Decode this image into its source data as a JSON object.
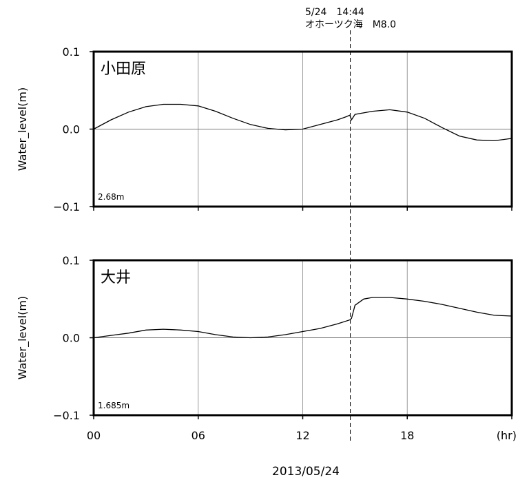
{
  "event": {
    "time_label": "5/24　14:44",
    "description": "オホーツク海　M8.0",
    "hour": 14.73
  },
  "x_unit": "(hr)",
  "date_label": "2013/05/24",
  "chart_data": [
    {
      "type": "line",
      "station": "小田原",
      "base_level": "2.68m",
      "ylabel": "Water_level(m)",
      "xlim": [
        0,
        24
      ],
      "ylim": [
        -0.1,
        0.1
      ],
      "grid": true,
      "x_ticks": [
        "00",
        "06",
        "12",
        "18"
      ],
      "y_ticks": [
        "0.1",
        "0.0",
        "−0.1"
      ],
      "x": [
        0,
        1,
        2,
        3,
        4,
        5,
        6,
        7,
        8,
        9,
        10,
        11,
        12,
        13,
        14,
        14.5,
        14.7,
        14.8,
        15,
        16,
        17,
        18,
        19,
        20,
        21,
        22,
        23,
        24
      ],
      "y": [
        0.0,
        0.012,
        0.022,
        0.029,
        0.032,
        0.032,
        0.03,
        0.023,
        0.014,
        0.006,
        0.001,
        -0.001,
        0.0,
        0.006,
        0.012,
        0.016,
        0.018,
        0.012,
        0.019,
        0.023,
        0.025,
        0.022,
        0.014,
        0.002,
        -0.009,
        -0.014,
        -0.015,
        -0.012
      ]
    },
    {
      "type": "line",
      "station": "大井",
      "base_level": "1.685m",
      "ylabel": "Water_level(m)",
      "xlim": [
        0,
        24
      ],
      "ylim": [
        -0.1,
        0.1
      ],
      "grid": true,
      "x_ticks": [
        "00",
        "06",
        "12",
        "18"
      ],
      "y_ticks": [
        "0.1",
        "0.0",
        "−0.1"
      ],
      "x": [
        0,
        1,
        2,
        3,
        4,
        5,
        6,
        7,
        8,
        9,
        10,
        11,
        12,
        13,
        14,
        14.7,
        14.8,
        15,
        15.5,
        16,
        17,
        18,
        19,
        20,
        21,
        22,
        23,
        24
      ],
      "y": [
        0.0,
        0.003,
        0.006,
        0.01,
        0.011,
        0.01,
        0.008,
        0.004,
        0.001,
        0.0,
        0.001,
        0.004,
        0.008,
        0.012,
        0.018,
        0.023,
        0.025,
        0.042,
        0.05,
        0.052,
        0.052,
        0.05,
        0.047,
        0.043,
        0.038,
        0.033,
        0.029,
        0.028
      ]
    }
  ]
}
